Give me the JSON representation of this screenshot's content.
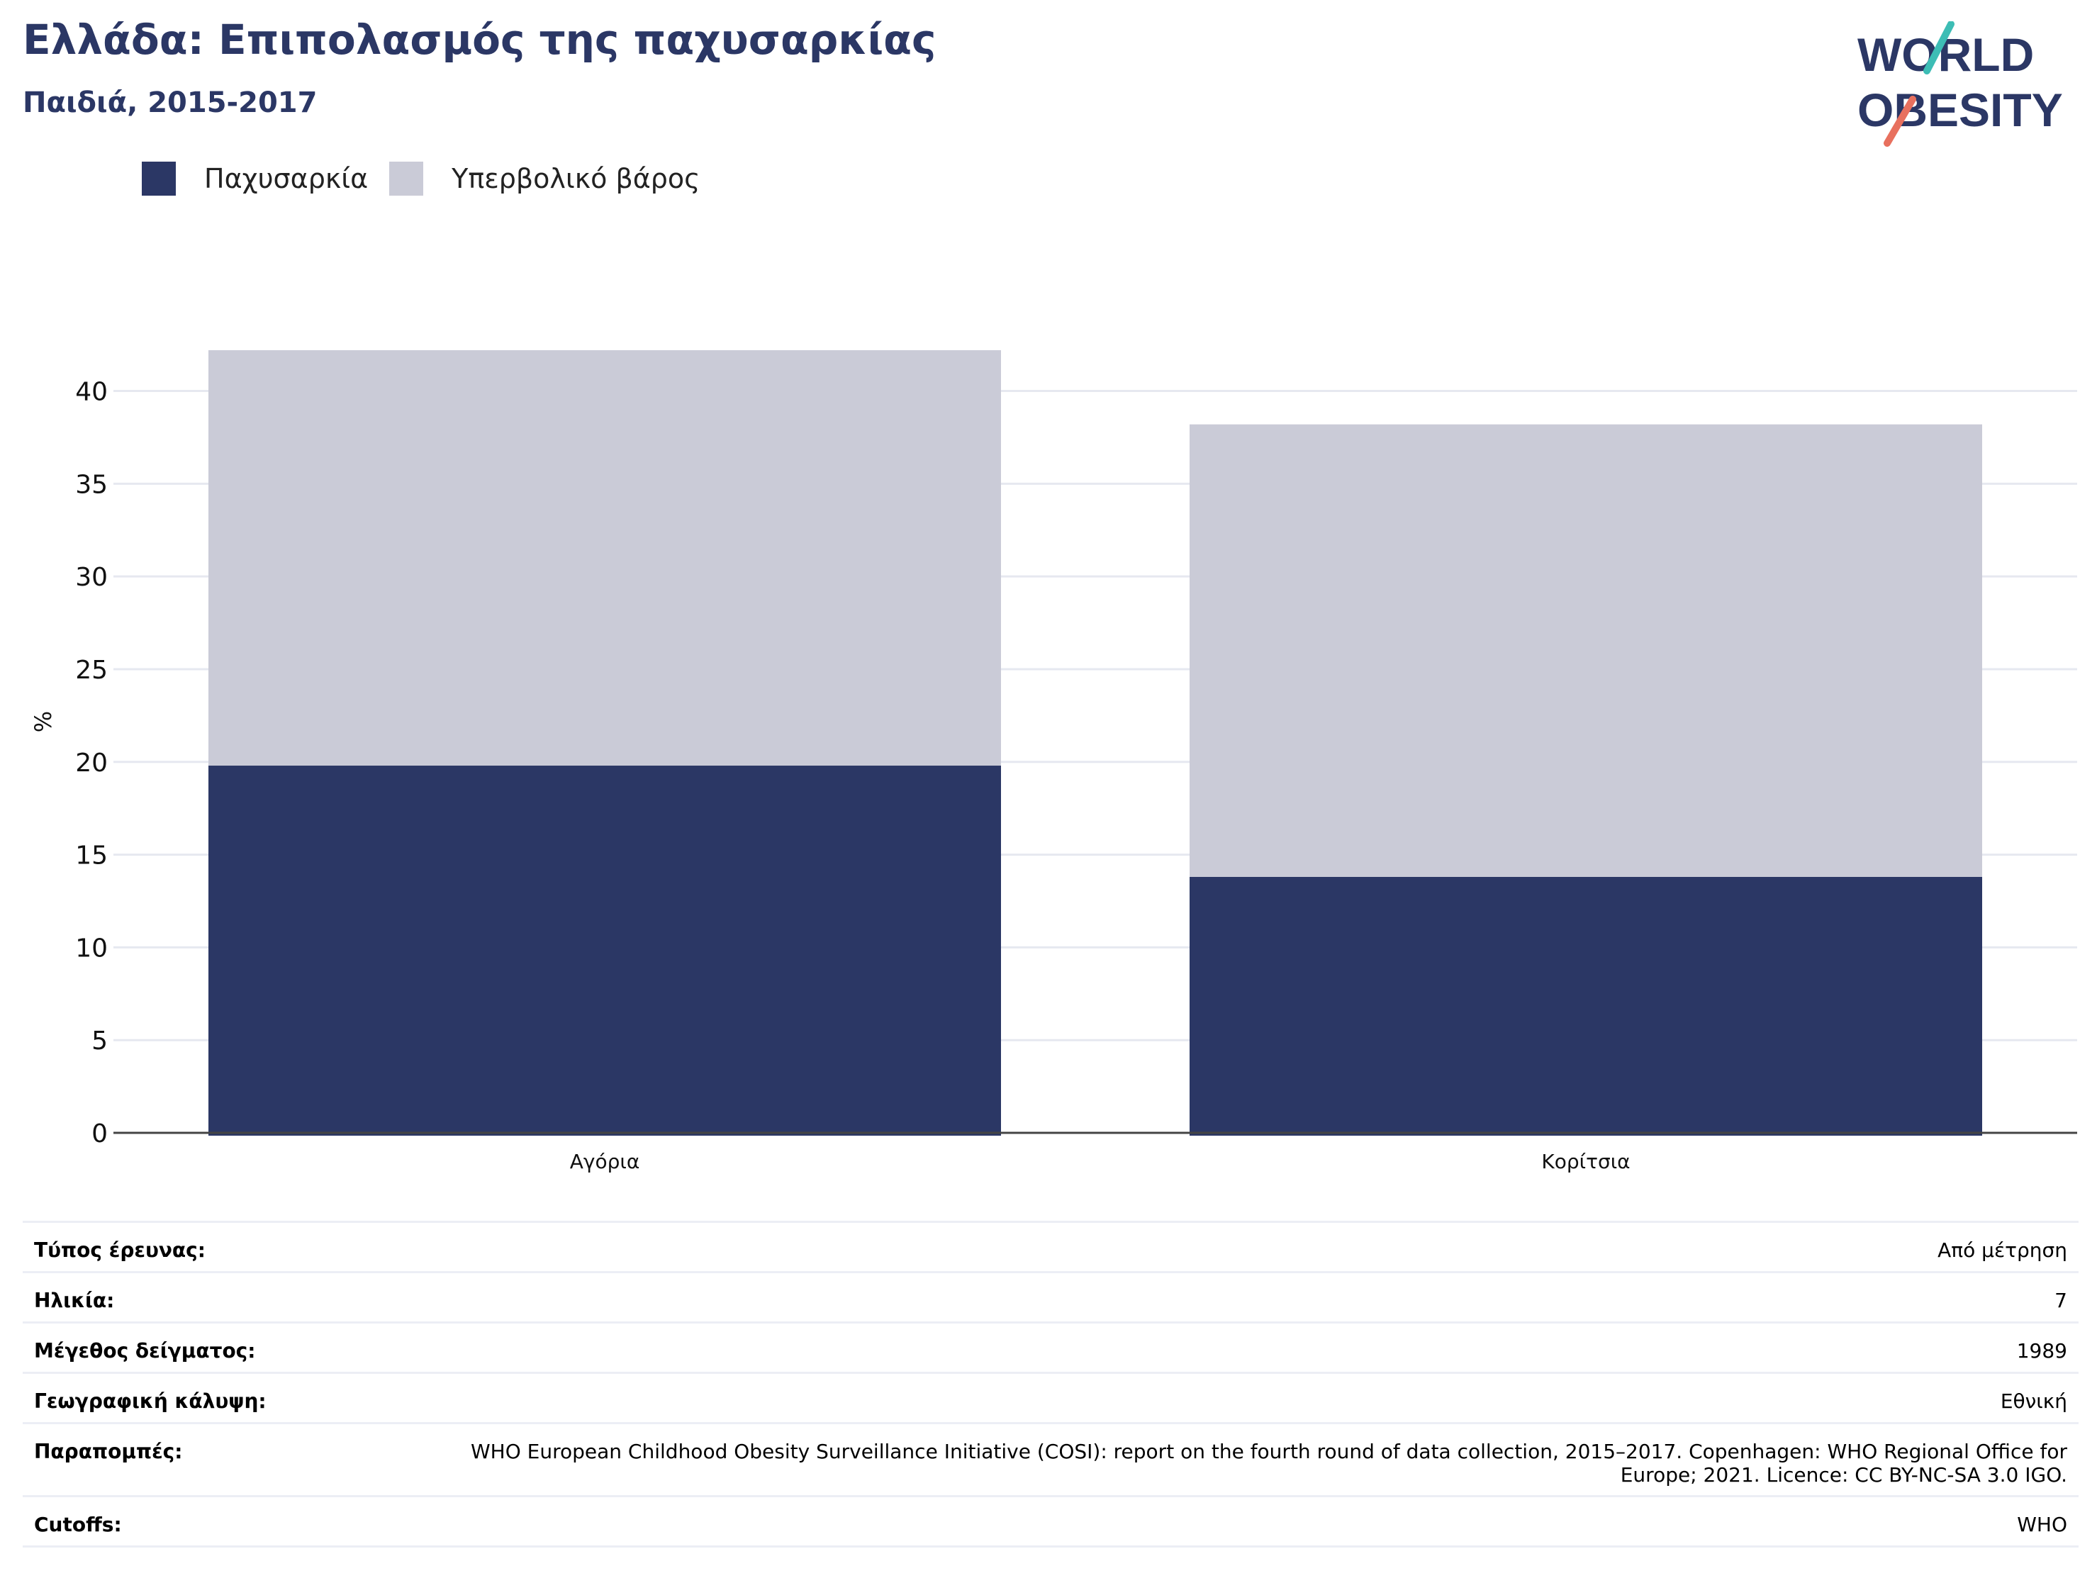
{
  "header": {
    "title": "Ελλάδα: Επιπολασμός της παχυσαρκίας",
    "subtitle": "Παιδιά, 2015-2017"
  },
  "logo": {
    "line1": "WORLD",
    "line2": "OBESITY"
  },
  "colors": {
    "obesity": "#2b3765",
    "overweight": "#cacbd7",
    "title": "#2b3765",
    "logo_teal": "#3dbdb5",
    "logo_coral": "#e8705e"
  },
  "chart_data": {
    "type": "bar",
    "stacked": true,
    "categories": [
      "Αγόρια",
      "Κορίτσια"
    ],
    "series": [
      {
        "name": "Παχυσαρκία",
        "values": [
          19.8,
          13.8
        ]
      },
      {
        "name": "Υπερβολικό βάρος",
        "values": [
          22.4,
          24.4
        ]
      }
    ],
    "ylabel": "%",
    "ylim": [
      0,
      42.2
    ],
    "yticks": [
      0,
      5,
      10,
      15,
      20,
      25,
      30,
      35,
      40
    ],
    "grid": true,
    "legend": "top-left"
  },
  "info": [
    {
      "label": "Τύπος έρευνας:",
      "value": "Από μέτρηση"
    },
    {
      "label": "Ηλικία:",
      "value": "7"
    },
    {
      "label": "Μέγεθος δείγματος:",
      "value": "1989"
    },
    {
      "label": "Γεωγραφική κάλυψη:",
      "value": "Εθνική"
    },
    {
      "label": "Παραπομπές:",
      "value": "WHO European Childhood Obesity Surveillance Initiative (COSI): report on the fourth round of data collection, 2015–2017. Copenhagen: WHO Regional Office for Europe; 2021. Licence: CC BY-NC-SA 3.0 IGO."
    },
    {
      "label": "Cutoffs:",
      "value": "WHO"
    }
  ]
}
